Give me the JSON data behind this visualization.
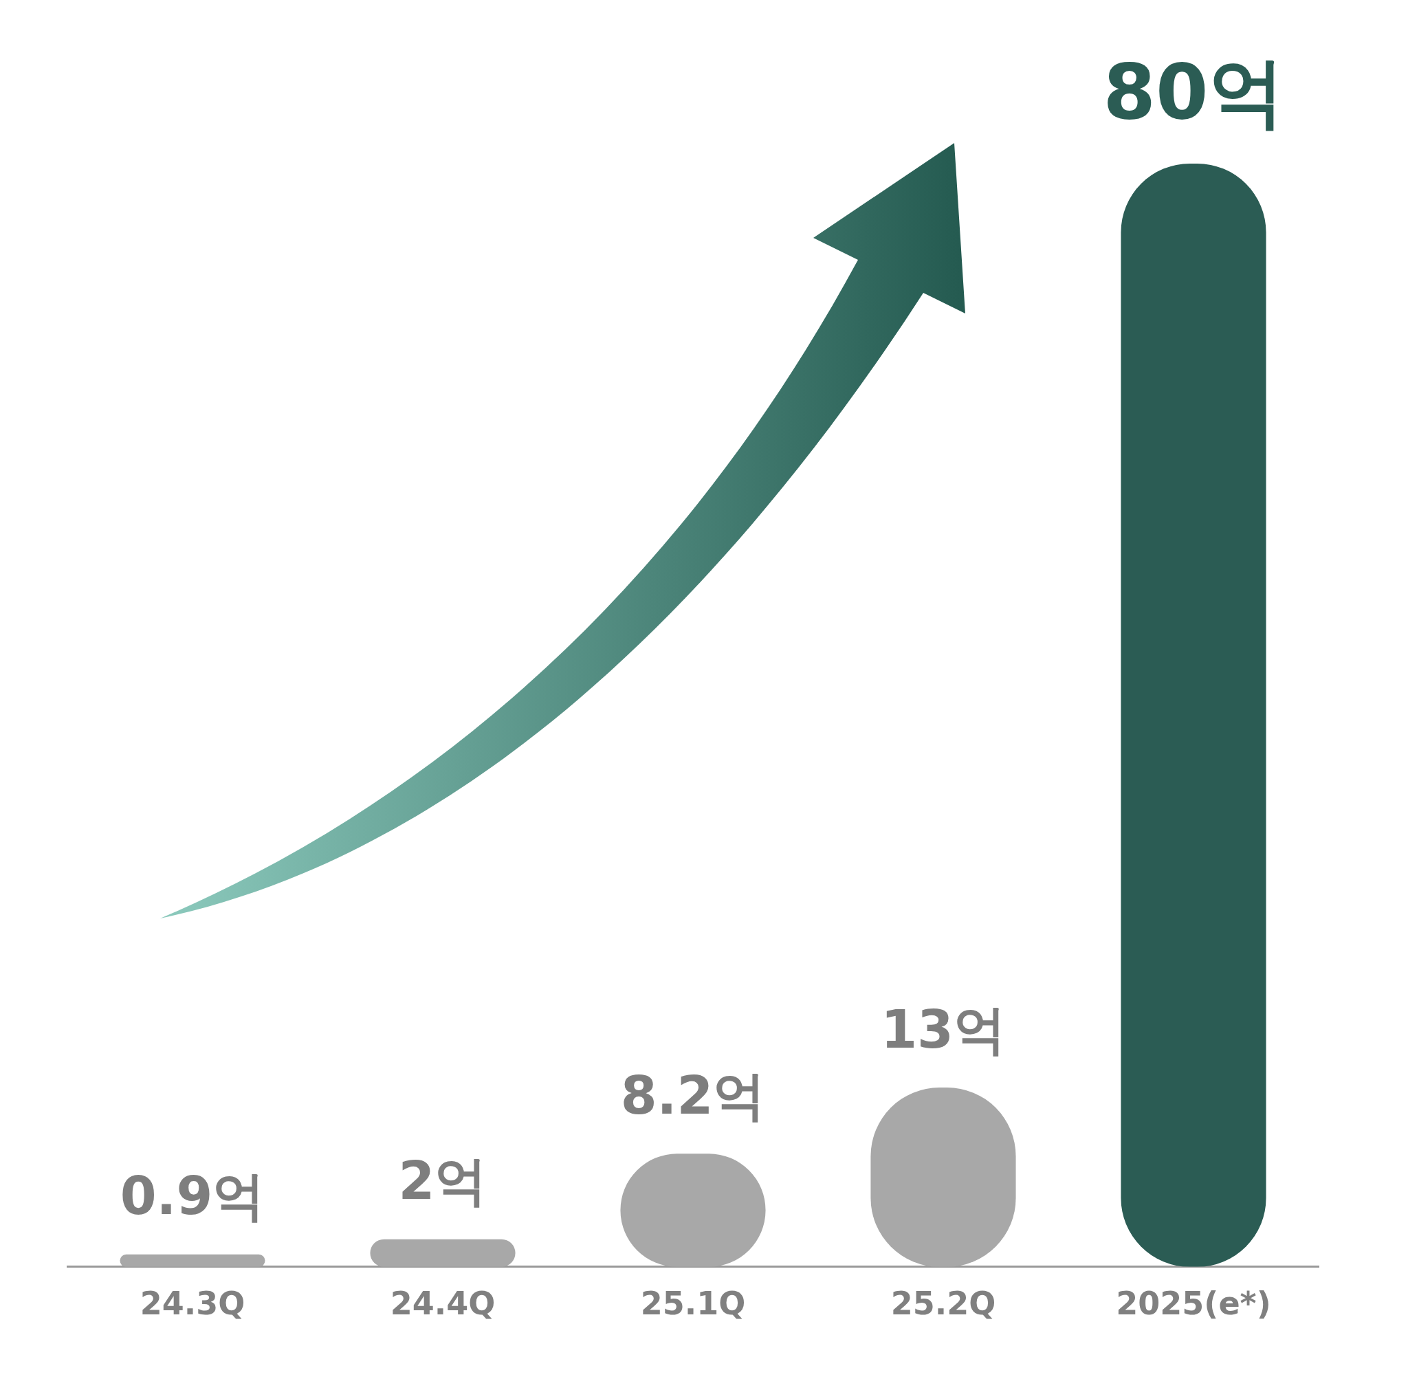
{
  "chart_data": {
    "type": "bar",
    "categories": [
      "24.3Q",
      "24.4Q",
      "25.1Q",
      "25.2Q",
      "2025(e*)"
    ],
    "values": [
      0.9,
      2,
      8.2,
      13,
      80
    ],
    "value_labels": [
      "0.9억",
      "2억",
      "8.2억",
      "13억",
      "80억"
    ],
    "colors": [
      "#a8a8a8",
      "#a8a8a8",
      "#a8a8a8",
      "#a8a8a8",
      "#2b5c54"
    ],
    "grid": false,
    "legend": false,
    "tick_labels": "x"
  }
}
